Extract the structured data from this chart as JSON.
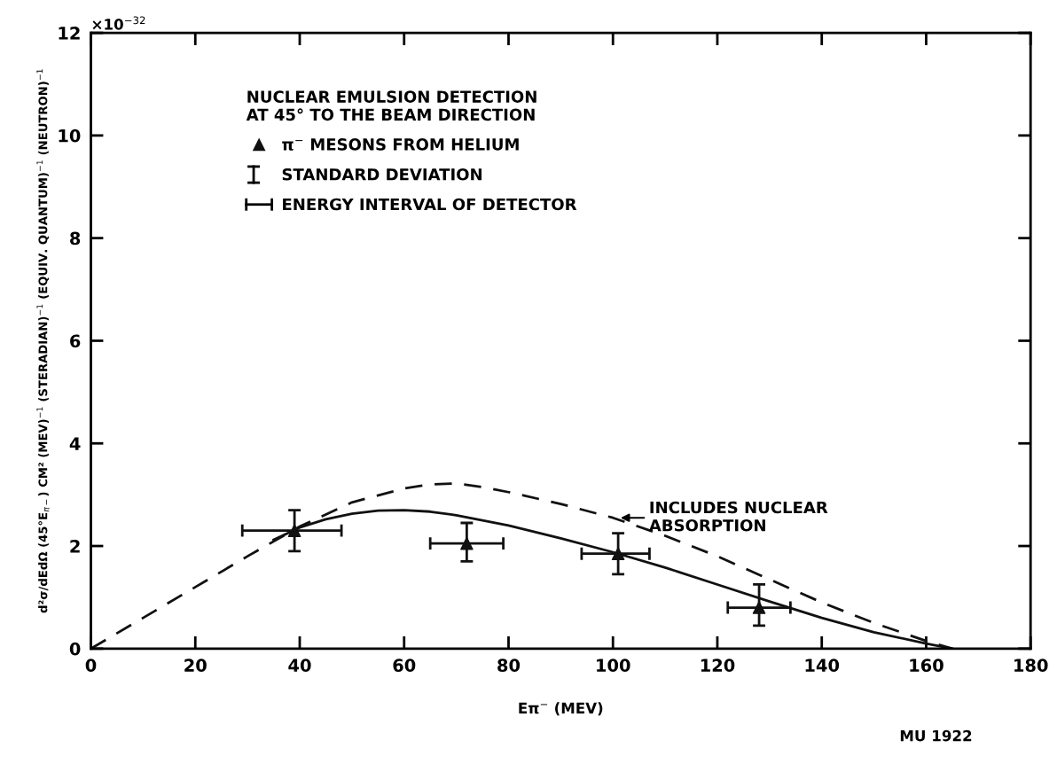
{
  "chart_data": {
    "type": "scatter",
    "xlabel": "Eπ$^{−}$ (MEV)",
    "ylabel": "d²σ/dEdΩ (45°E$_{π−}$) CM² (MEV)$^{−1}$ (STERADIAN)$^{−1}$ (EQUIV. QUANTUM)$^{−1}$ (NEUTRON)$^{−1}$",
    "legend_title": "NUCLEAR EMULSION DETECTION\nAT 45° TO THE BEAM DIRECTION",
    "legend": "top left",
    "grid": false,
    "xlim": [
      0,
      180
    ],
    "xticks": [
      0,
      20,
      40,
      60,
      80,
      100,
      120,
      140,
      160,
      180
    ],
    "ylim": [
      0,
      12
    ],
    "yticks": [
      0,
      2,
      4,
      6,
      8,
      10,
      12
    ],
    "series": [
      {
        "name": "π$^{−}$ MESONS FROM HELIUM",
        "type": "scatter",
        "marker": "triangle",
        "color": "#111111",
        "x": [
          39,
          72,
          101,
          128
        ],
        "values": [
          2.3,
          2.05,
          1.85,
          0.8
        ],
        "errors": [
          [
            1.9,
            2.7
          ],
          [
            1.7,
            2.45
          ],
          [
            1.45,
            2.25
          ],
          [
            0.45,
            1.25
          ]
        ],
        "xerrors": [
          [
            29,
            48
          ],
          [
            65,
            79
          ],
          [
            94,
            107
          ],
          [
            122,
            134
          ]
        ]
      },
      {
        "type": "line",
        "line_style": "solid",
        "marker": "none",
        "color": "#111111",
        "x": [
          35,
          40,
          45,
          50,
          55,
          60,
          65,
          70,
          80,
          90,
          100,
          110,
          120,
          130,
          140,
          150,
          160,
          165
        ],
        "values": [
          2.12,
          2.36,
          2.52,
          2.63,
          2.69,
          2.7,
          2.67,
          2.6,
          2.4,
          2.15,
          1.88,
          1.58,
          1.25,
          0.92,
          0.6,
          0.32,
          0.1,
          0
        ]
      },
      {
        "type": "line",
        "line_style": "dashed",
        "marker": "none",
        "color": "#111111",
        "x": [
          0,
          10,
          20,
          30,
          40,
          50,
          60,
          65,
          70,
          75,
          80,
          90,
          100,
          110,
          120,
          130,
          140,
          150,
          160,
          165
        ],
        "values": [
          0,
          0.6,
          1.2,
          1.8,
          2.38,
          2.85,
          3.12,
          3.2,
          3.22,
          3.15,
          3.05,
          2.82,
          2.55,
          2.2,
          1.8,
          1.35,
          0.9,
          0.5,
          0.15,
          0
        ]
      }
    ],
    "annotations": [
      {
        "text": "INCLUDES NUCLEAR\nABSORPTION",
        "x": 101,
        "y": 2.55
      },
      "STANDARD DEVIATION",
      "ENERGY INTERVAL OF DETECTOR",
      "MU 1922",
      "×10$^{−32}$"
    ]
  }
}
